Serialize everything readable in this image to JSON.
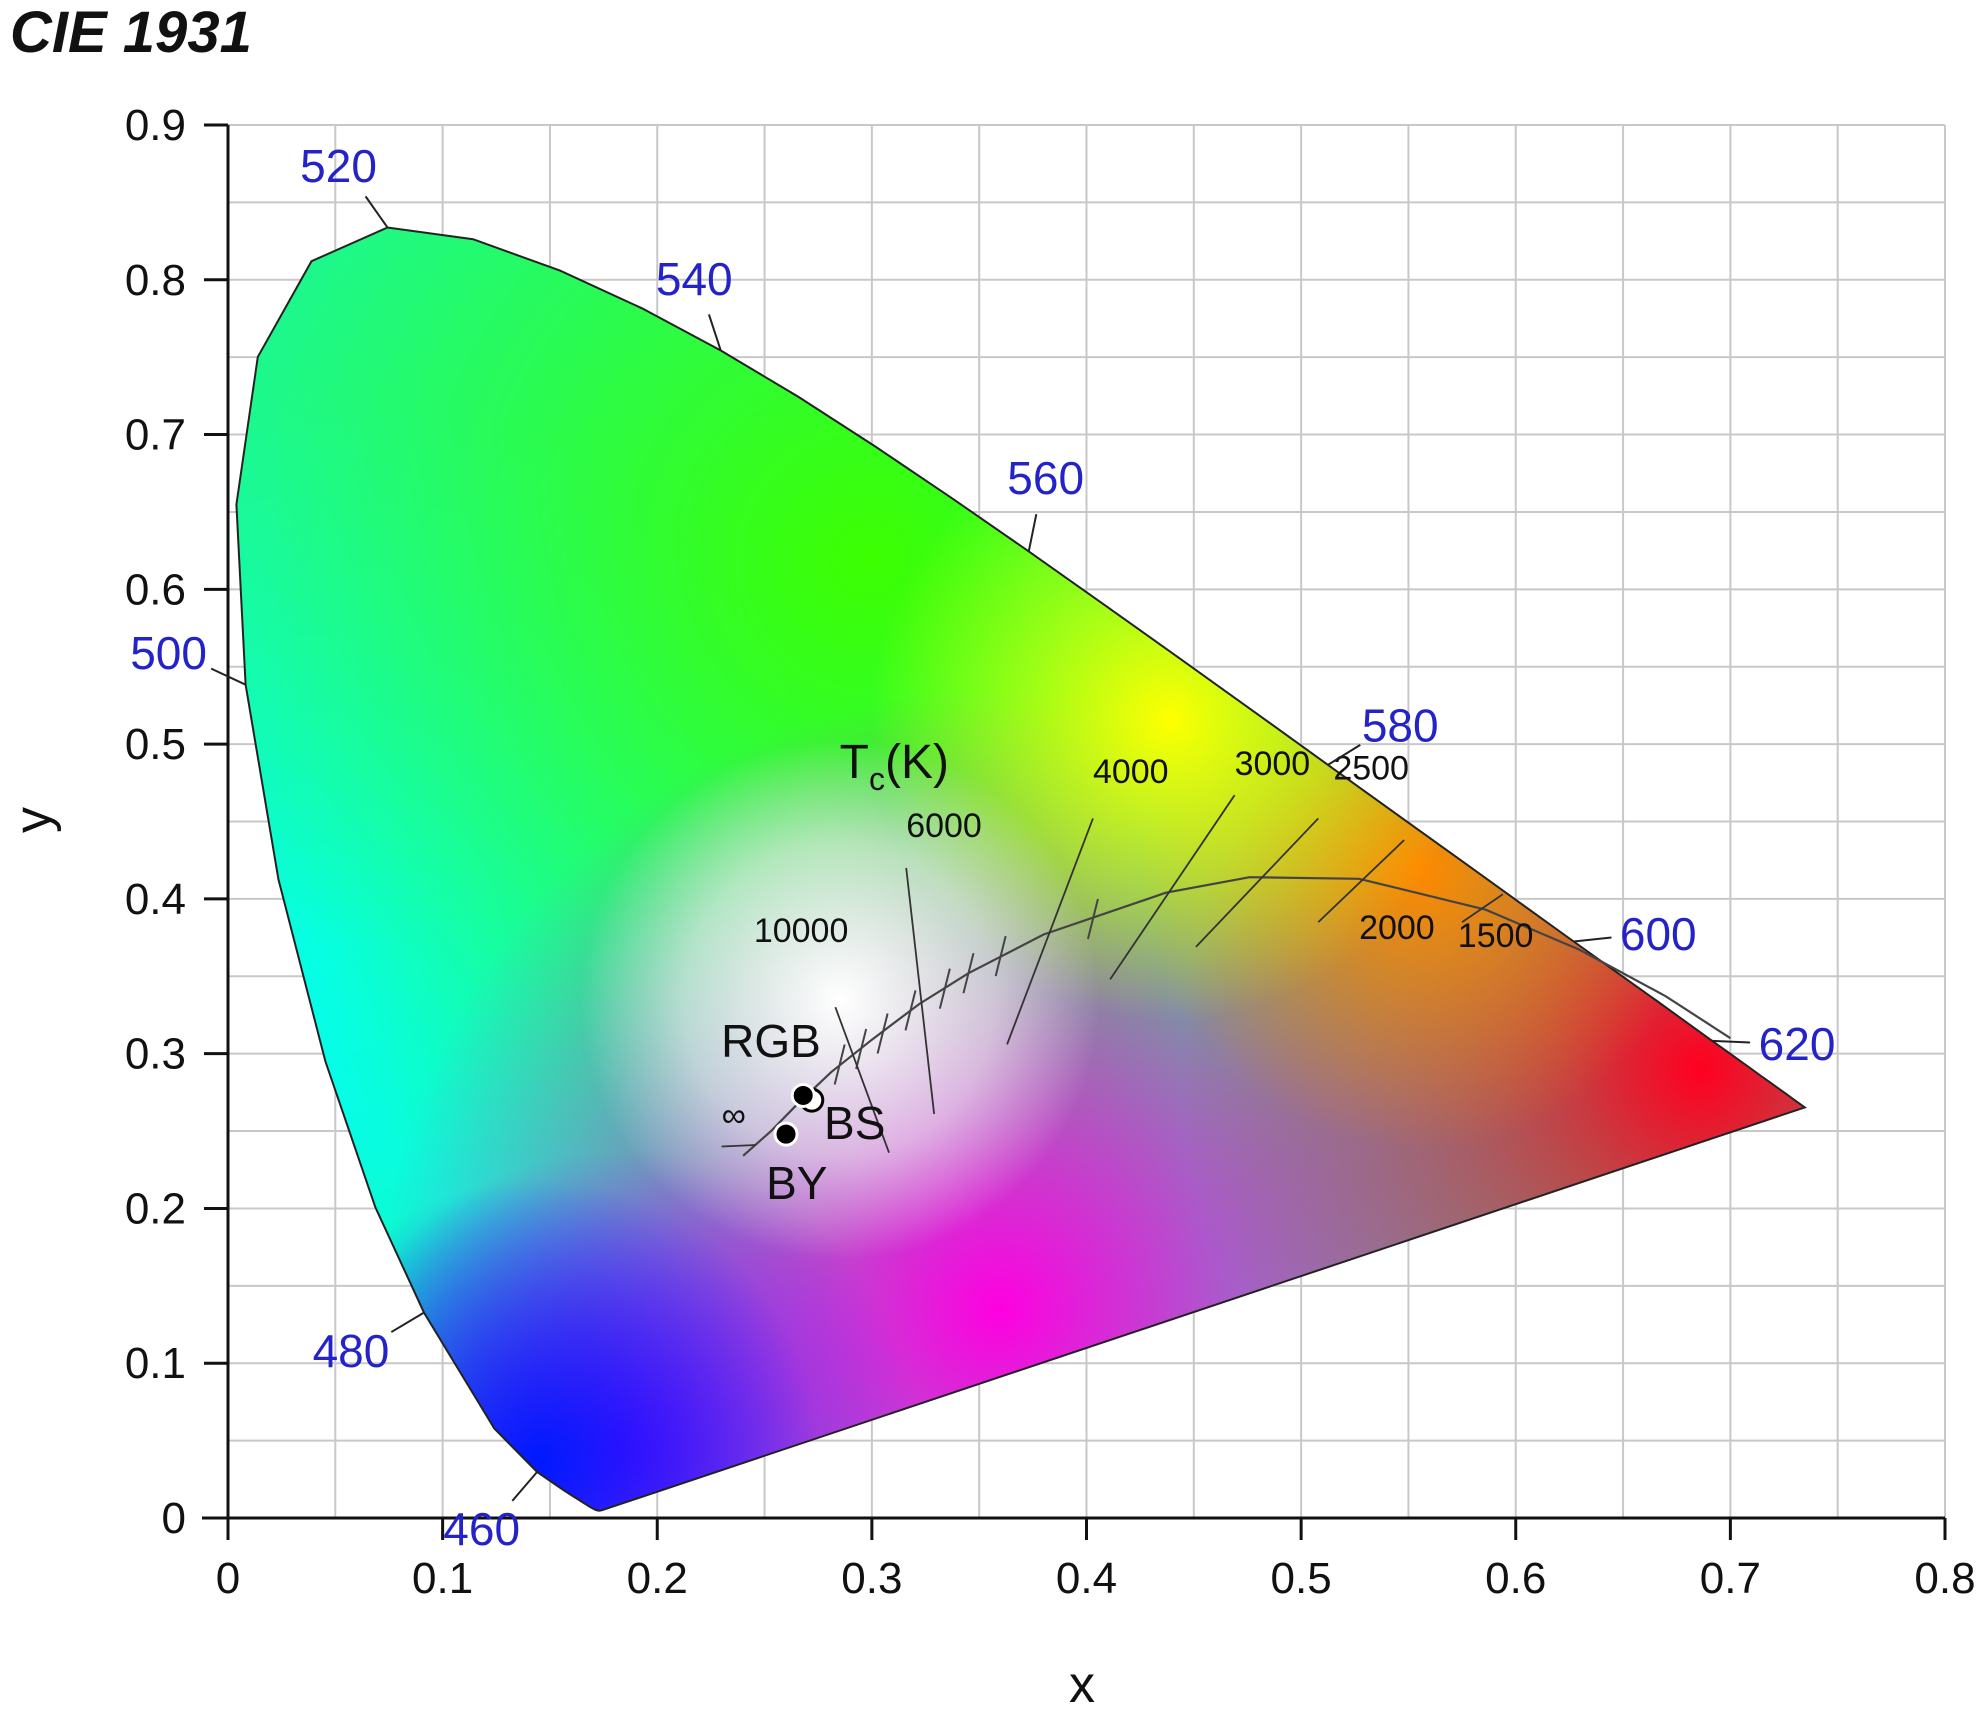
{
  "chart_data": {
    "type": "scatter",
    "title": "CIE 1931",
    "xlabel": "x",
    "ylabel": "y",
    "xlim": [
      0,
      0.8
    ],
    "ylim": [
      0,
      0.9
    ],
    "grid": true,
    "x_ticks": [
      "0",
      "0.1",
      "0.2",
      "0.3",
      "0.4",
      "0.5",
      "0.6",
      "0.7",
      "0.8"
    ],
    "y_ticks": [
      "0",
      "0.1",
      "0.2",
      "0.3",
      "0.4",
      "0.5",
      "0.6",
      "0.7",
      "0.8",
      "0.9"
    ],
    "spectral_locus": [
      [
        0.1741,
        0.005
      ],
      [
        0.1738,
        0.0049
      ],
      [
        0.1733,
        0.0048
      ],
      [
        0.1726,
        0.0048
      ],
      [
        0.1714,
        0.0051
      ],
      [
        0.1689,
        0.0069
      ],
      [
        0.1644,
        0.0109
      ],
      [
        0.1566,
        0.0177
      ],
      [
        0.144,
        0.0297
      ],
      [
        0.1241,
        0.0578
      ],
      [
        0.0913,
        0.1327
      ],
      [
        0.0687,
        0.2007
      ],
      [
        0.0454,
        0.295
      ],
      [
        0.0235,
        0.4127
      ],
      [
        0.0082,
        0.5384
      ],
      [
        0.0039,
        0.6548
      ],
      [
        0.0139,
        0.7502
      ],
      [
        0.0389,
        0.812
      ],
      [
        0.0743,
        0.8338
      ],
      [
        0.1142,
        0.8262
      ],
      [
        0.1547,
        0.8059
      ],
      [
        0.1929,
        0.7816
      ],
      [
        0.2296,
        0.7543
      ],
      [
        0.2658,
        0.7243
      ],
      [
        0.3016,
        0.6923
      ],
      [
        0.3373,
        0.6589
      ],
      [
        0.3731,
        0.6245
      ],
      [
        0.4087,
        0.5896
      ],
      [
        0.4441,
        0.5547
      ],
      [
        0.4788,
        0.5202
      ],
      [
        0.5125,
        0.4866
      ],
      [
        0.5448,
        0.4544
      ],
      [
        0.5752,
        0.4242
      ],
      [
        0.6029,
        0.3965
      ],
      [
        0.627,
        0.3725
      ],
      [
        0.6482,
        0.3514
      ],
      [
        0.6658,
        0.334
      ],
      [
        0.6801,
        0.3197
      ],
      [
        0.6915,
        0.3083
      ],
      [
        0.7006,
        0.2993
      ],
      [
        0.7079,
        0.292
      ],
      [
        0.714,
        0.2859
      ],
      [
        0.719,
        0.2809
      ],
      [
        0.723,
        0.277
      ],
      [
        0.726,
        0.274
      ],
      [
        0.7283,
        0.2717
      ],
      [
        0.7347,
        0.2653
      ]
    ],
    "wavelength_labels": [
      {
        "label": "460",
        "at": [
          0.144,
          0.0297
        ]
      },
      {
        "label": "480",
        "at": [
          0.0913,
          0.1327
        ]
      },
      {
        "label": "500",
        "at": [
          0.0082,
          0.5384
        ]
      },
      {
        "label": "520",
        "at": [
          0.0743,
          0.8338
        ]
      },
      {
        "label": "540",
        "at": [
          0.2296,
          0.7543
        ]
      },
      {
        "label": "560",
        "at": [
          0.3731,
          0.6245
        ]
      },
      {
        "label": "580",
        "at": [
          0.5125,
          0.4866
        ]
      },
      {
        "label": "600",
        "at": [
          0.627,
          0.3725
        ]
      },
      {
        "label": "620",
        "at": [
          0.6915,
          0.3083
        ]
      }
    ],
    "planckian_locus": [
      [
        0.24,
        0.234
      ],
      [
        0.253,
        0.25
      ],
      [
        0.265,
        0.267
      ],
      [
        0.281,
        0.288
      ],
      [
        0.3,
        0.309
      ],
      [
        0.322,
        0.332
      ],
      [
        0.345,
        0.352
      ],
      [
        0.38,
        0.377
      ],
      [
        0.437,
        0.404
      ],
      [
        0.476,
        0.414
      ],
      [
        0.527,
        0.413
      ],
      [
        0.586,
        0.393
      ],
      [
        0.63,
        0.367
      ],
      [
        0.67,
        0.337
      ],
      [
        0.7,
        0.31
      ]
    ],
    "planckian_tick_points": [
      [
        0.285,
        0.293
      ],
      [
        0.295,
        0.303
      ],
      [
        0.305,
        0.313
      ],
      [
        0.318,
        0.328
      ],
      [
        0.334,
        0.342
      ],
      [
        0.345,
        0.352
      ],
      [
        0.36,
        0.363
      ],
      [
        0.403,
        0.387
      ]
    ],
    "cct_lines": [
      {
        "label": "∞",
        "from": [
          0.246,
          0.241
        ],
        "to": [
          0.23,
          0.24
        ],
        "label_at": [
          0.23,
          0.253
        ]
      },
      {
        "label": "10000",
        "from": [
          0.283,
          0.33
        ],
        "to": [
          0.308,
          0.236
        ],
        "label_at": [
          0.245,
          0.372
        ]
      },
      {
        "label": "6000",
        "from": [
          0.316,
          0.42
        ],
        "to": [
          0.329,
          0.261
        ],
        "label_at": [
          0.316,
          0.44
        ]
      },
      {
        "label": "4000",
        "from": [
          0.403,
          0.452
        ],
        "to": [
          0.363,
          0.306
        ],
        "label_at": [
          0.403,
          0.475
        ]
      },
      {
        "label": "3000",
        "from": [
          0.469,
          0.467
        ],
        "to": [
          0.411,
          0.348
        ],
        "label_at": [
          0.469,
          0.48
        ]
      },
      {
        "label": "2500",
        "from": [
          0.508,
          0.452
        ],
        "to": [
          0.451,
          0.369
        ],
        "label_at": [
          0.515,
          0.477
        ]
      },
      {
        "label": "2000",
        "from": [
          0.548,
          0.438
        ],
        "to": [
          0.508,
          0.385
        ],
        "label_at": [
          0.527,
          0.374
        ]
      },
      {
        "label": "1500",
        "from": [
          0.594,
          0.403
        ],
        "to": [
          0.575,
          0.385
        ],
        "label_at": [
          0.573,
          0.369
        ]
      }
    ],
    "tc_label": {
      "base": "T",
      "sub": "c",
      "tail": "(K)",
      "at": [
        0.285,
        0.478
      ]
    },
    "points": [
      {
        "label": "RGB",
        "x": 0.268,
        "y": 0.273,
        "color": "#000000",
        "label_at": [
          0.253,
          0.298
        ]
      },
      {
        "label": "BS",
        "x": 0.272,
        "y": 0.27,
        "color": "#ffffff",
        "label_at": [
          0.292,
          0.245
        ]
      },
      {
        "label": "BY",
        "x": 0.26,
        "y": 0.248,
        "color": "#000000",
        "label_at": [
          0.265,
          0.206
        ]
      }
    ]
  }
}
